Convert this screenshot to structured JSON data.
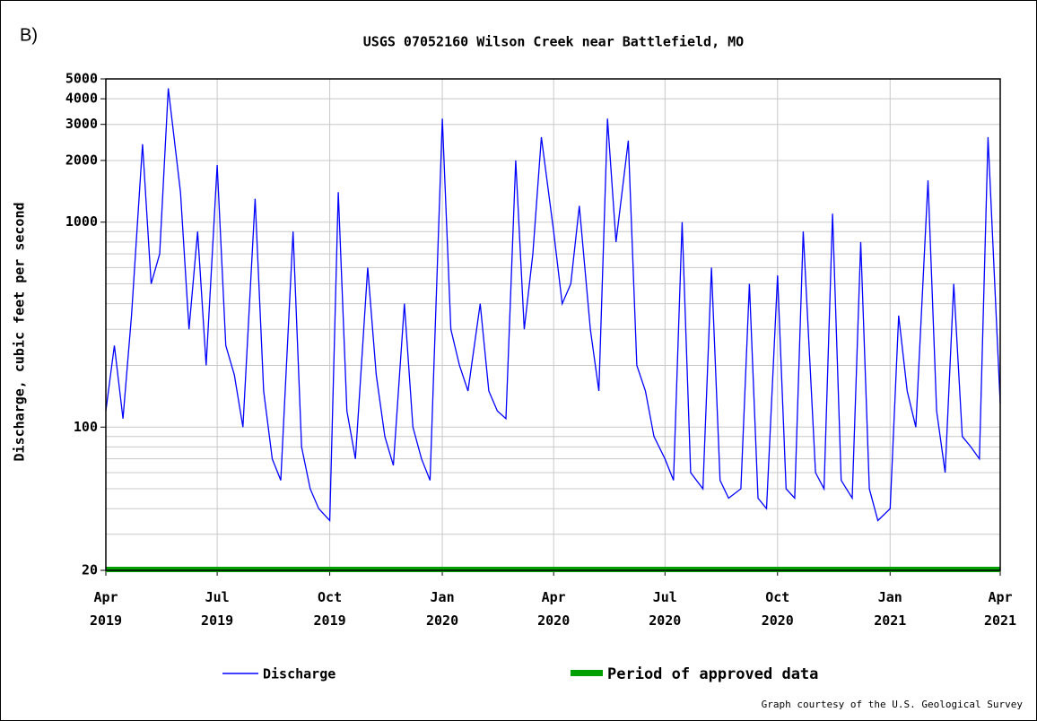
{
  "chart_data": {
    "type": "line",
    "panel_label": "B)",
    "title": "USGS 07052160 Wilson Creek near Battlefield, MO",
    "y_label": "Discharge, cubic feet per second",
    "credit": "Graph courtesy of the U.S. Geological Survey",
    "log_y": true,
    "grid": true,
    "ylim": [
      20,
      5000
    ],
    "yticks": [
      20,
      100,
      1000,
      2000,
      3000,
      4000,
      5000
    ],
    "ygrid": [
      30,
      40,
      50,
      60,
      70,
      80,
      90,
      200,
      300,
      400,
      500,
      600,
      700,
      800,
      900
    ],
    "xlim": [
      "2019-04-01",
      "2021-04-01"
    ],
    "xticks": [
      {
        "value": "2019-04-01",
        "label": "Apr 2019"
      },
      {
        "value": "2019-07-01",
        "label": "Jul 2019"
      },
      {
        "value": "2019-10-01",
        "label": "Oct 2019"
      },
      {
        "value": "2020-01-01",
        "label": "Jan 2020"
      },
      {
        "value": "2020-04-01",
        "label": "Apr 2020"
      },
      {
        "value": "2020-07-01",
        "label": "Jul 2020"
      },
      {
        "value": "2020-10-01",
        "label": "Oct 2020"
      },
      {
        "value": "2021-01-01",
        "label": "Jan 2021"
      },
      {
        "value": "2021-04-01",
        "label": "Apr 2021"
      }
    ],
    "x": [
      "2019-04-01",
      "2019-04-08",
      "2019-04-15",
      "2019-04-22",
      "2019-05-01",
      "2019-05-08",
      "2019-05-15",
      "2019-05-22",
      "2019-06-01",
      "2019-06-08",
      "2019-06-15",
      "2019-06-22",
      "2019-07-01",
      "2019-07-08",
      "2019-07-15",
      "2019-07-22",
      "2019-08-01",
      "2019-08-08",
      "2019-08-15",
      "2019-08-22",
      "2019-09-01",
      "2019-09-08",
      "2019-09-15",
      "2019-09-22",
      "2019-10-01",
      "2019-10-08",
      "2019-10-15",
      "2019-10-22",
      "2019-11-01",
      "2019-11-08",
      "2019-11-15",
      "2019-11-22",
      "2019-12-01",
      "2019-12-08",
      "2019-12-15",
      "2019-12-22",
      "2020-01-01",
      "2020-01-08",
      "2020-01-15",
      "2020-01-22",
      "2020-02-01",
      "2020-02-08",
      "2020-02-15",
      "2020-02-22",
      "2020-03-01",
      "2020-03-08",
      "2020-03-15",
      "2020-03-22",
      "2020-04-01",
      "2020-04-08",
      "2020-04-15",
      "2020-04-22",
      "2020-05-01",
      "2020-05-08",
      "2020-05-15",
      "2020-05-22",
      "2020-06-01",
      "2020-06-08",
      "2020-06-15",
      "2020-06-22",
      "2020-07-01",
      "2020-07-08",
      "2020-07-15",
      "2020-07-22",
      "2020-08-01",
      "2020-08-08",
      "2020-08-15",
      "2020-08-22",
      "2020-09-01",
      "2020-09-08",
      "2020-09-15",
      "2020-09-22",
      "2020-10-01",
      "2020-10-08",
      "2020-10-15",
      "2020-10-22",
      "2020-11-01",
      "2020-11-08",
      "2020-11-15",
      "2020-11-22",
      "2020-12-01",
      "2020-12-08",
      "2020-12-15",
      "2020-12-22",
      "2021-01-01",
      "2021-01-08",
      "2021-01-15",
      "2021-01-22",
      "2021-02-01",
      "2021-02-08",
      "2021-02-15",
      "2021-02-22",
      "2021-03-01",
      "2021-03-08",
      "2021-03-15",
      "2021-03-22",
      "2021-04-01"
    ],
    "series": [
      {
        "name": "Discharge",
        "color": "#0000ff",
        "values": [
          120,
          250,
          110,
          350,
          2400,
          500,
          700,
          4500,
          1400,
          300,
          900,
          200,
          1900,
          250,
          180,
          100,
          1300,
          150,
          70,
          55,
          900,
          80,
          50,
          40,
          35,
          1400,
          120,
          70,
          600,
          180,
          90,
          65,
          400,
          100,
          70,
          55,
          3200,
          300,
          200,
          150,
          400,
          150,
          120,
          110,
          2000,
          300,
          700,
          2600,
          900,
          400,
          500,
          1200,
          300,
          150,
          3200,
          800,
          2500,
          200,
          150,
          90,
          70,
          55,
          1000,
          60,
          50,
          600,
          55,
          45,
          50,
          500,
          45,
          40,
          550,
          50,
          45,
          900,
          60,
          50,
          1100,
          55,
          45,
          800,
          50,
          35,
          40,
          350,
          150,
          100,
          1600,
          120,
          60,
          500,
          90,
          80,
          70,
          2600,
          130
        ]
      }
    ],
    "periods": [
      {
        "name": "Period of approved data",
        "color": "#00a000",
        "start": "2019-04-01",
        "end": "2021-04-01"
      }
    ]
  }
}
